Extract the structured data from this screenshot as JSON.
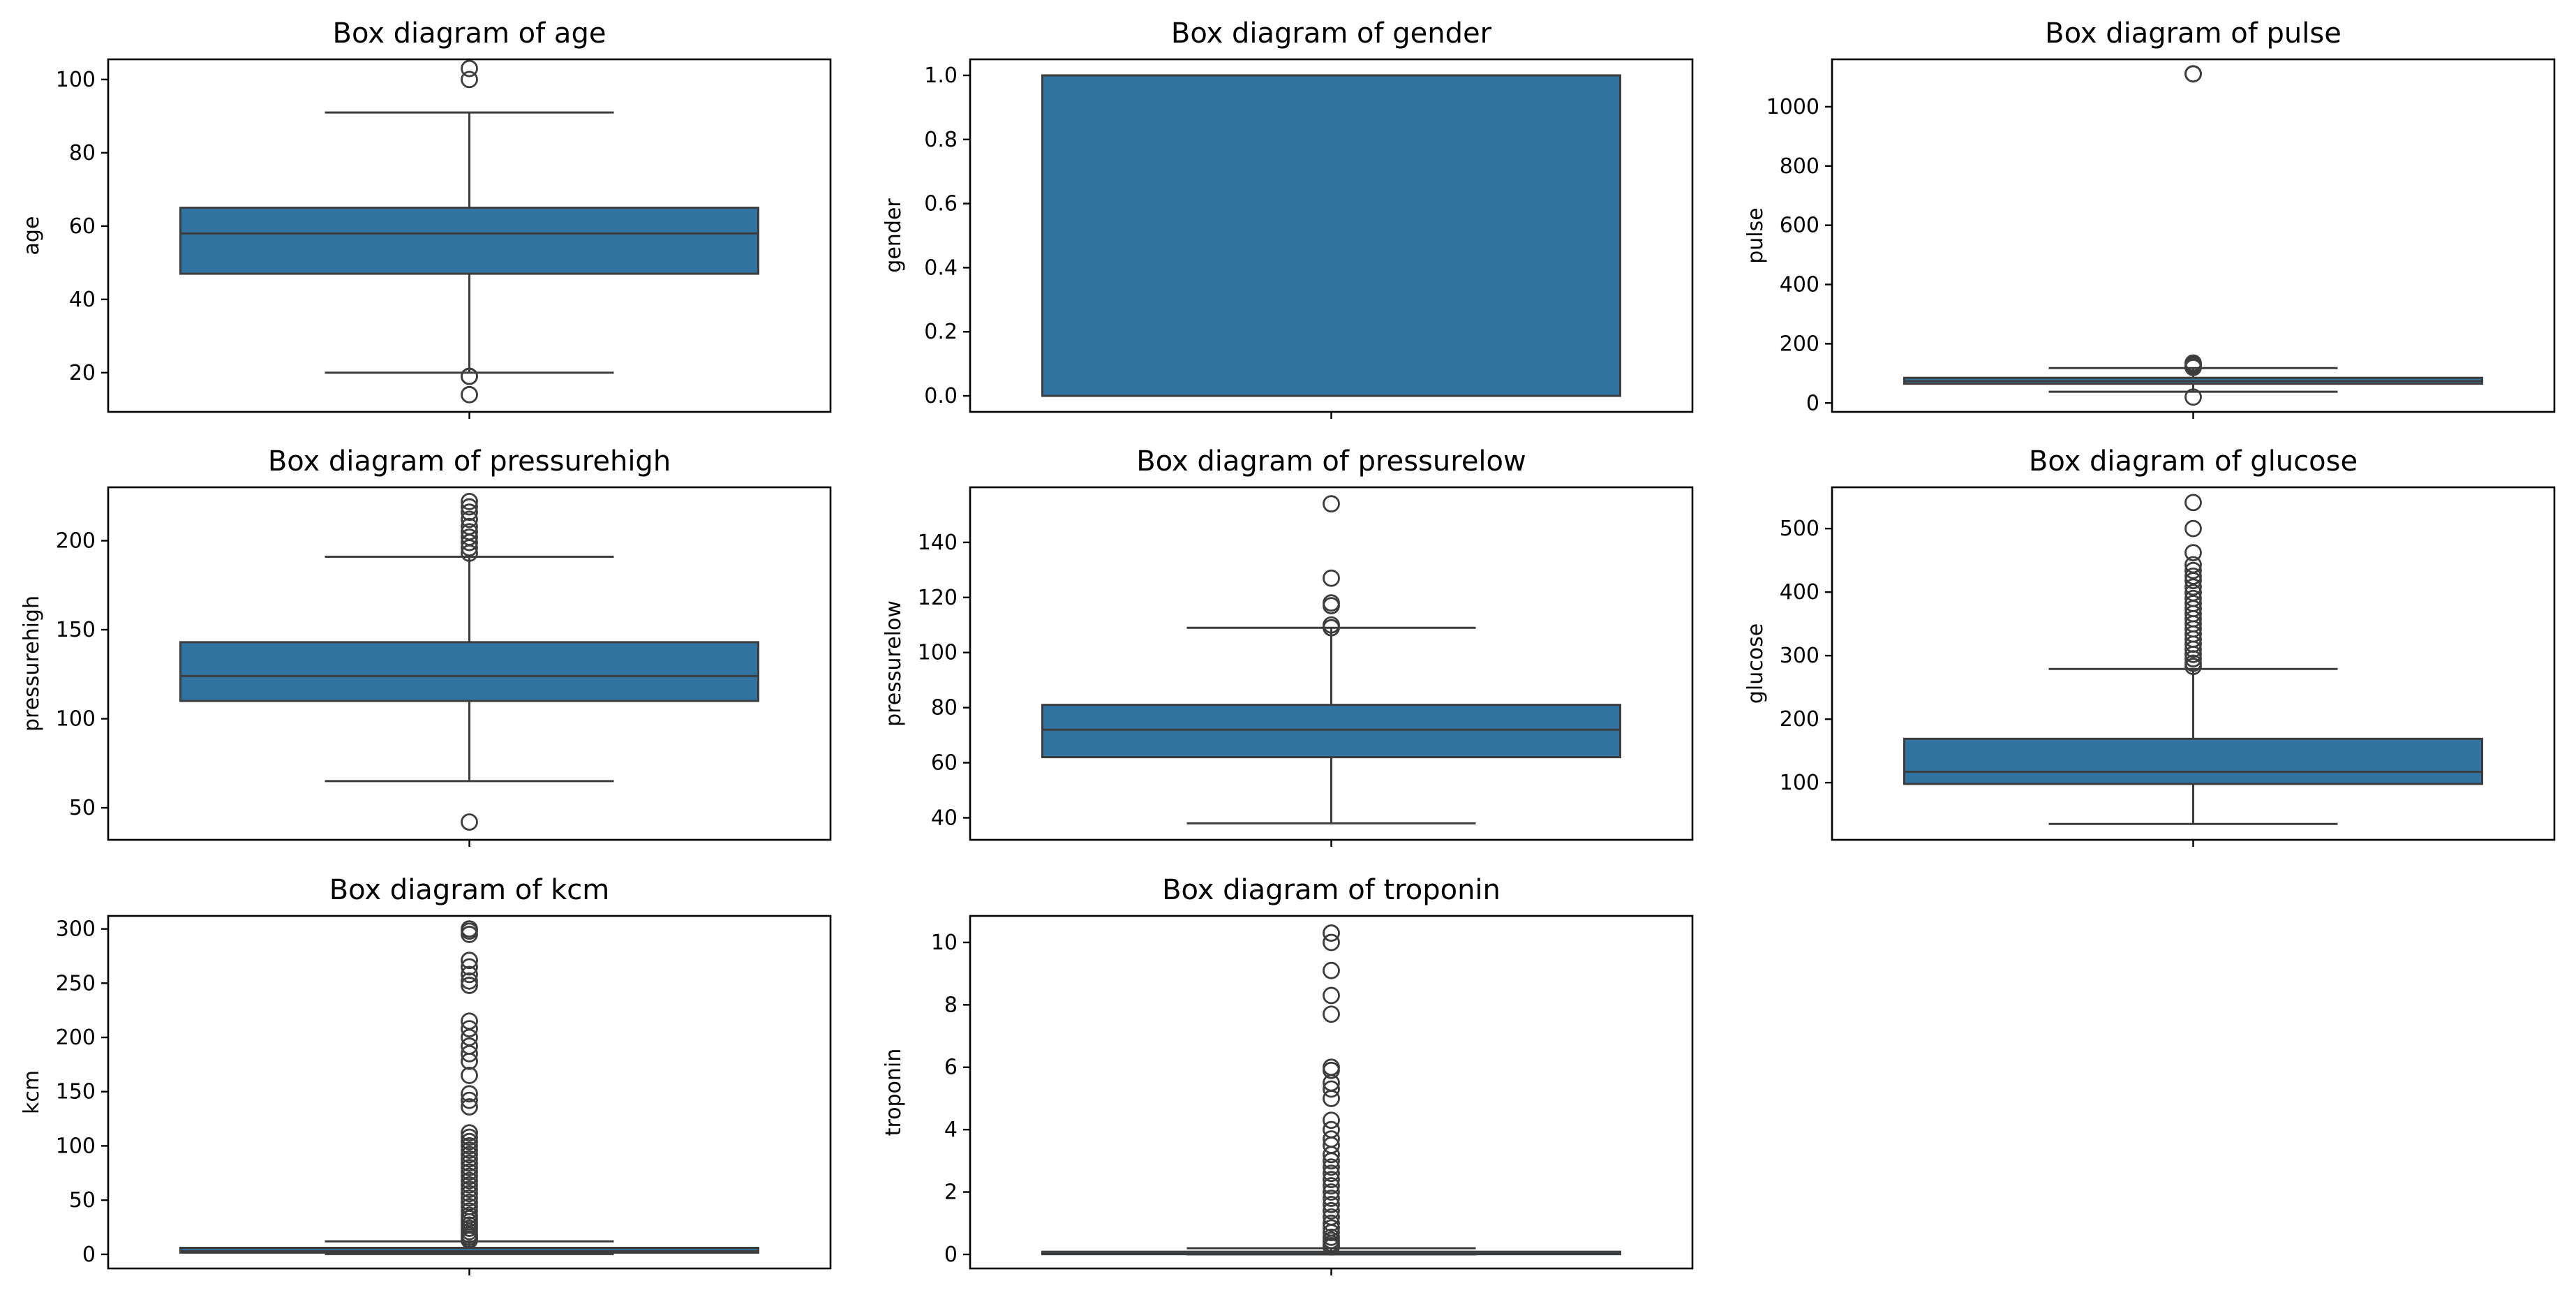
{
  "colors": {
    "box_fill": "#3274a1",
    "line": "#3d3d3d",
    "flier": "#3d3d3d",
    "frame": "#000000",
    "background": "#ffffff"
  },
  "chart_data": [
    {
      "type": "box",
      "title": "Box diagram of age",
      "ylabel": "age",
      "ylim": [
        9.3,
        105.5
      ],
      "yticks": [
        20,
        40,
        60,
        80,
        100
      ],
      "tick_labels": [
        "20",
        "40",
        "60",
        "80",
        "100"
      ],
      "box": {
        "whisker_low": 20,
        "q1": 47,
        "median": 58,
        "q3": 65,
        "whisker_high": 91
      },
      "fliers": [
        103,
        100,
        19,
        19,
        14
      ]
    },
    {
      "type": "box",
      "title": "Box diagram of gender",
      "ylabel": "gender",
      "ylim": [
        -0.05,
        1.05
      ],
      "yticks": [
        0.0,
        0.2,
        0.4,
        0.6,
        0.8,
        1.0
      ],
      "tick_labels": [
        "0.0",
        "0.2",
        "0.4",
        "0.6",
        "0.8",
        "1.0"
      ],
      "box": {
        "whisker_low": 0,
        "q1": 0,
        "median": 1,
        "q3": 1,
        "whisker_high": 1
      },
      "fliers": []
    },
    {
      "type": "box",
      "title": "Box diagram of pulse",
      "ylabel": "pulse",
      "ylim": [
        -30,
        1160
      ],
      "yticks": [
        0,
        200,
        400,
        600,
        800,
        1000
      ],
      "tick_labels": [
        "0",
        "200",
        "400",
        "600",
        "800",
        "1000"
      ],
      "box": {
        "whisker_low": 38,
        "q1": 65,
        "median": 74,
        "q3": 85,
        "whisker_high": 118
      },
      "fliers": [
        1111,
        1111,
        135,
        130,
        125,
        120,
        20
      ]
    },
    {
      "type": "box",
      "title": "Box diagram of pressurehigh",
      "ylabel": "pressurehigh",
      "ylim": [
        32,
        230
      ],
      "yticks": [
        50,
        100,
        150,
        200
      ],
      "tick_labels": [
        "50",
        "100",
        "150",
        "200"
      ],
      "box": {
        "whisker_low": 65,
        "q1": 110,
        "median": 124,
        "q3": 143,
        "whisker_high": 191
      },
      "fliers": [
        222,
        219,
        216,
        212,
        208,
        205,
        202,
        199,
        196,
        193,
        42
      ]
    },
    {
      "type": "box",
      "title": "Box diagram of pressurelow",
      "ylabel": "pressurelow",
      "ylim": [
        32,
        160
      ],
      "yticks": [
        40,
        60,
        80,
        100,
        120,
        140
      ],
      "tick_labels": [
        "40",
        "60",
        "80",
        "100",
        "120",
        "140"
      ],
      "box": {
        "whisker_low": 38,
        "q1": 62,
        "median": 72,
        "q3": 81,
        "whisker_high": 109
      },
      "fliers": [
        154,
        127,
        118,
        117,
        110,
        109
      ]
    },
    {
      "type": "box",
      "title": "Box diagram of glucose",
      "ylabel": "glucose",
      "ylim": [
        10,
        565
      ],
      "yticks": [
        100,
        200,
        300,
        400,
        500
      ],
      "tick_labels": [
        "100",
        "200",
        "300",
        "400",
        "500"
      ],
      "box": {
        "whisker_low": 35,
        "q1": 98,
        "median": 117,
        "q3": 169,
        "whisker_high": 279
      },
      "fliers": [
        541,
        500,
        462,
        443,
        434,
        425,
        418,
        408,
        399,
        390,
        382,
        374,
        366,
        358,
        350,
        342,
        334,
        326,
        318,
        310,
        302,
        295,
        288,
        283
      ]
    },
    {
      "type": "box",
      "title": "Box diagram of kcm",
      "ylabel": "kcm",
      "ylim": [
        -13,
        312
      ],
      "yticks": [
        0,
        50,
        100,
        150,
        200,
        250,
        300
      ],
      "tick_labels": [
        "0",
        "50",
        "100",
        "150",
        "200",
        "250",
        "300"
      ],
      "box": {
        "whisker_low": 0.3,
        "q1": 1.6,
        "median": 3,
        "q3": 6,
        "whisker_high": 12
      },
      "fliers": [
        300,
        298,
        295,
        271,
        265,
        258,
        252,
        248,
        215,
        208,
        200,
        192,
        185,
        178,
        165,
        148,
        142,
        136,
        112,
        108,
        104,
        100,
        96,
        92,
        88,
        84,
        80,
        76,
        72,
        68,
        64,
        60,
        56,
        52,
        48,
        44,
        40,
        36,
        33,
        30,
        27,
        24,
        21,
        18,
        16,
        14,
        13
      ]
    },
    {
      "type": "box",
      "title": "Box diagram of troponin",
      "ylabel": "troponin",
      "ylim": [
        -0.45,
        10.85
      ],
      "yticks": [
        0,
        2,
        4,
        6,
        8,
        10
      ],
      "tick_labels": [
        "0",
        "2",
        "4",
        "6",
        "8",
        "10"
      ],
      "box": {
        "whisker_low": 0.001,
        "q1": 0.006,
        "median": 0.014,
        "q3": 0.085,
        "whisker_high": 0.2
      },
      "fliers": [
        10.3,
        10.0,
        9.1,
        8.3,
        7.7,
        6.0,
        5.9,
        5.5,
        5.3,
        5.0,
        4.3,
        4.0,
        3.7,
        3.5,
        3.2,
        3.0,
        2.8,
        2.6,
        2.4,
        2.2,
        2.0,
        1.8,
        1.6,
        1.4,
        1.2,
        1.0,
        0.85,
        0.7,
        0.55,
        0.45,
        0.35,
        0.28,
        0.24
      ]
    }
  ]
}
